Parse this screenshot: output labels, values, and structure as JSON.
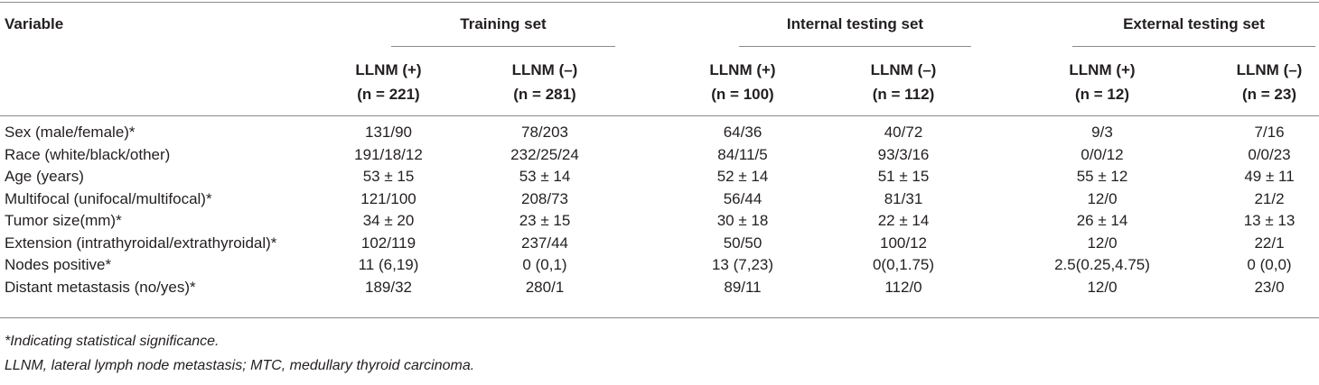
{
  "table": {
    "variable_header": "Variable",
    "groups": [
      {
        "title": "Training set",
        "columns": [
          {
            "label": "LLNM (+)",
            "n": "(n = 221)"
          },
          {
            "label": "LLNM (–)",
            "n": "(n = 281)"
          }
        ]
      },
      {
        "title": "Internal testing set",
        "columns": [
          {
            "label": "LLNM (+)",
            "n": "(n = 100)"
          },
          {
            "label": "LLNM (–)",
            "n": "(n = 112)"
          }
        ]
      },
      {
        "title": "External testing set",
        "columns": [
          {
            "label": "LLNM (+)",
            "n": "(n = 12)"
          },
          {
            "label": "LLNM (–)",
            "n": "(n = 23)"
          }
        ]
      }
    ],
    "rows": [
      [
        "Sex (male/female)*",
        "131/90",
        "78/203",
        "64/36",
        "40/72",
        "9/3",
        "7/16"
      ],
      [
        "Race (white/black/other)",
        "191/18/12",
        "232/25/24",
        "84/11/5",
        "93/3/16",
        "0/0/12",
        "0/0/23"
      ],
      [
        "Age (years)",
        "53 ± 15",
        "53 ± 14",
        "52 ± 14",
        "51 ± 15",
        "55 ± 12",
        "49 ± 11"
      ],
      [
        "Multifocal (unifocal/multifocal)*",
        "121/100",
        "208/73",
        "56/44",
        "81/31",
        "12/0",
        "21/2"
      ],
      [
        "Tumor size(mm)*",
        "34 ± 20",
        "23 ± 15",
        "30 ± 18",
        "22 ± 14",
        "26 ± 14",
        "13 ± 13"
      ],
      [
        "Extension (intrathyroidal/extrathyroidal)*",
        "102/119",
        "237/44",
        "50/50",
        "100/12",
        "12/0",
        "22/1"
      ],
      [
        "Nodes positive*",
        "11 (6,19)",
        "0 (0,1)",
        "13 (7,23)",
        "0(0,1.75)",
        "2.5(0.25,4.75)",
        "0 (0,0)"
      ],
      [
        "Distant metastasis (no/yes)*",
        "189/32",
        "280/1",
        "89/11",
        "112/0",
        "12/0",
        "23/0"
      ]
    ]
  },
  "footnotes": [
    "*Indicating statistical significance.",
    "LLNM, lateral lymph node metastasis; MTC, medullary thyroid carcinoma."
  ]
}
